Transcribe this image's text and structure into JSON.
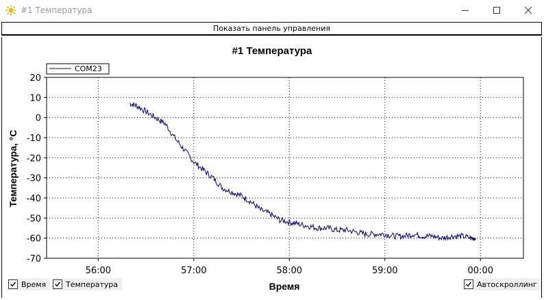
{
  "window": {
    "title": "#1 Температура",
    "show_panel_label": "Показать панель управления"
  },
  "checkboxes": {
    "time": {
      "label": "Время",
      "checked": true
    },
    "temperature": {
      "label": "Температура",
      "checked": true
    },
    "autoscroll": {
      "label": "Автоскроллинг",
      "checked": true
    }
  },
  "chart_data": {
    "type": "line",
    "title": "#1 Температура",
    "xlabel": "Время",
    "ylabel": "Температура, °C",
    "ylim": [
      -70,
      20
    ],
    "yticks": [
      20,
      10,
      0,
      -10,
      -20,
      -30,
      -40,
      -50,
      -60,
      -70
    ],
    "xticks": [
      "56:00",
      "57:00",
      "58:00",
      "59:00",
      "00:00"
    ],
    "x_units": "minutes (55:00 – 00:00+)",
    "grid": true,
    "legend_placement": "top-left",
    "series": [
      {
        "name": "COM23",
        "color": "#00007f",
        "x": [
          56.33,
          56.4,
          56.5,
          56.6,
          56.7,
          56.8,
          56.9,
          57.0,
          57.1,
          57.2,
          57.3,
          57.4,
          57.5,
          57.6,
          57.7,
          57.8,
          57.9,
          58.0,
          58.1,
          58.2,
          58.3,
          58.4,
          58.5,
          58.6,
          58.7,
          58.8,
          58.9,
          59.0,
          59.1,
          59.2,
          59.3,
          59.4,
          59.5,
          59.6,
          59.7,
          59.8,
          59.9,
          59.95
        ],
        "y": [
          7,
          6,
          3,
          0,
          -3,
          -10,
          -16,
          -22,
          -26,
          -30,
          -35,
          -37,
          -39,
          -42,
          -46,
          -48,
          -51,
          -52,
          -53,
          -54,
          -55,
          -55,
          -56,
          -56,
          -57,
          -58,
          -58,
          -58,
          -59,
          -59,
          -58,
          -59,
          -59,
          -60,
          -59,
          -59,
          -60,
          -60
        ]
      }
    ]
  }
}
